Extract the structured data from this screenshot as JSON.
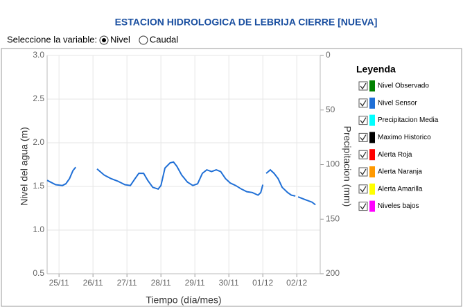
{
  "variable_selector": {
    "label": "Seleccione la variable:",
    "options": [
      "Nivel",
      "Caudal"
    ],
    "selected": 0
  },
  "chart_data": {
    "type": "line",
    "title": "ESTACION HIDROLOGICA DE LEBRIJA CIERRE [NUEVA]",
    "y_label": "Nivel del agua (m)",
    "y2_label": "Precipitacion (mm)",
    "x_label": "Tiempo (día/mes)",
    "legend_title": "Leyenda",
    "xlim": [
      -0.35,
      7.69
    ],
    "xticks": [
      {
        "value": 0,
        "label": "25/11"
      },
      {
        "value": 1,
        "label": "26/11"
      },
      {
        "value": 2,
        "label": "27/11"
      },
      {
        "value": 3,
        "label": "28/11"
      },
      {
        "value": 4,
        "label": "29/11"
      },
      {
        "value": 5,
        "label": "30/11"
      },
      {
        "value": 6,
        "label": "01/12"
      },
      {
        "value": 7,
        "label": "02/12"
      }
    ],
    "ylim": [
      0.5,
      3.0
    ],
    "yticks": [
      0.5,
      {
        "value": 1.0,
        "label": "1.0"
      },
      1.5,
      {
        "value": 2.0,
        "label": "2.0"
      },
      2.5,
      {
        "value": 3.0,
        "label": "3.0"
      }
    ],
    "y2lim": [
      200,
      0
    ],
    "y2ticks": [
      0,
      50,
      100,
      150,
      200
    ],
    "grid": true,
    "series": [
      {
        "name": "Nivel Observado",
        "color": "#008000"
      },
      {
        "name": "Nivel Sensor",
        "color": "#1f6fd6",
        "x": [
          -0.35,
          -0.1,
          0.1,
          0.2,
          0.31,
          0.41,
          0.49,
          0.9,
          1.12,
          1.33,
          1.53,
          1.73,
          1.94,
          2.1,
          2.24,
          2.35,
          2.49,
          2.61,
          2.76,
          2.92,
          3.0,
          3.12,
          3.27,
          3.37,
          3.47,
          3.61,
          3.78,
          3.94,
          4.08,
          4.22,
          4.35,
          4.49,
          4.63,
          4.76,
          4.9,
          5.04,
          5.2,
          5.37,
          5.53,
          5.69,
          5.86,
          5.94,
          6.0,
          6.04,
          6.1,
          6.22,
          6.33,
          6.45,
          6.57,
          6.73,
          6.84,
          6.96,
          7.03,
          7.04,
          7.24,
          7.45,
          7.55
        ],
        "values": [
          1.57,
          1.52,
          1.51,
          1.53,
          1.59,
          1.68,
          1.72,
          null,
          1.7,
          1.63,
          1.59,
          1.56,
          1.52,
          1.51,
          1.59,
          1.65,
          1.65,
          1.57,
          1.49,
          1.47,
          1.51,
          1.71,
          1.77,
          1.78,
          1.73,
          1.63,
          1.55,
          1.51,
          1.53,
          1.65,
          1.69,
          1.67,
          1.69,
          1.67,
          1.59,
          1.54,
          1.51,
          1.47,
          1.44,
          1.43,
          1.4,
          1.43,
          1.52,
          null,
          1.65,
          1.69,
          1.65,
          1.59,
          1.49,
          1.43,
          1.4,
          1.39,
          null,
          1.38,
          1.35,
          1.32,
          1.29
        ]
      },
      {
        "name": "Precipitacion Media",
        "color": "#00ffff"
      },
      {
        "name": "Maximo Historico",
        "color": "#000000"
      },
      {
        "name": "Alerta Roja",
        "color": "#ff0000"
      },
      {
        "name": "Alerta Naranja",
        "color": "#ff9900"
      },
      {
        "name": "Alerta Amarilla",
        "color": "#ffff00"
      },
      {
        "name": "Niveles bajos",
        "color": "#ff00ff"
      }
    ]
  }
}
